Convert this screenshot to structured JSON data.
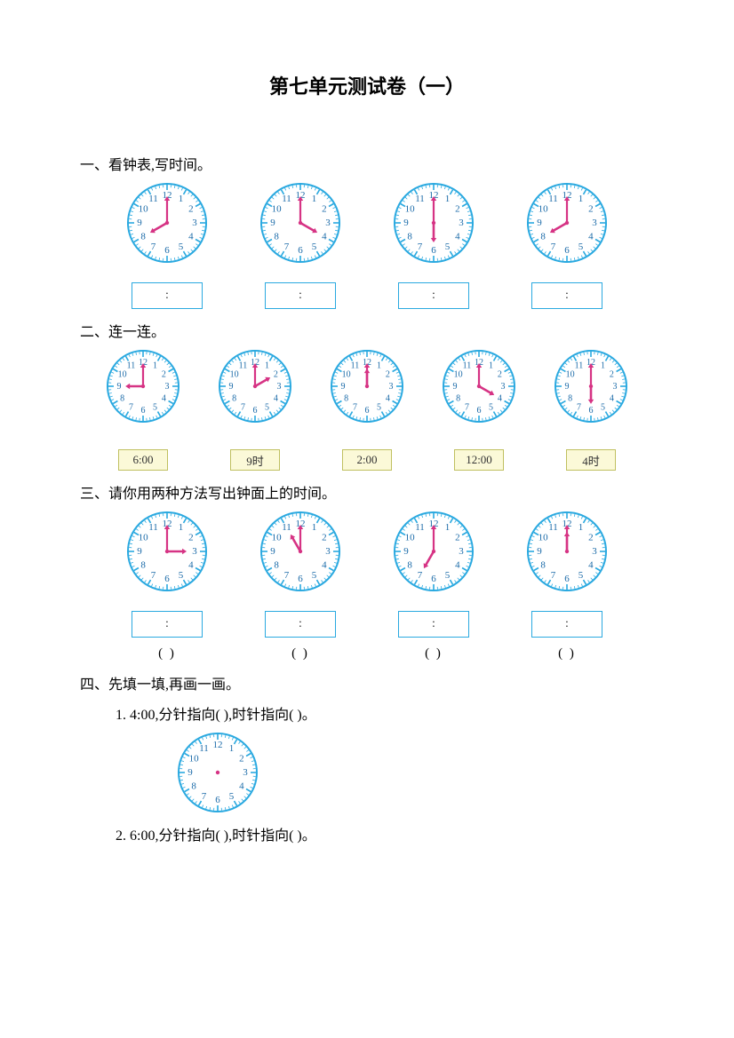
{
  "title": "第七单元测试卷（一）",
  "clock_style": {
    "bezel_color": "#2aa9e0",
    "tick_color": "#2aa9e0",
    "number_color": "#1a6aa8",
    "minute_hand_color": "#d63384",
    "hour_hand_color": "#d63384",
    "center_color": "#d63384",
    "answer_box_border": "#2aa9e0",
    "label_box_bg": "#fbf9d8",
    "label_box_border": "#c0c060"
  },
  "sections": {
    "q1": {
      "heading": "一、看钟表,写时间。",
      "clocks": [
        {
          "hour": 8,
          "minute": 0
        },
        {
          "hour": 4,
          "minute": 0
        },
        {
          "hour": 6,
          "minute": 0
        },
        {
          "hour": 8,
          "minute": 0
        }
      ],
      "answer_placeholder": ":"
    },
    "q2": {
      "heading": "二、连一连。",
      "clocks": [
        {
          "hour": 9,
          "minute": 0
        },
        {
          "hour": 2,
          "minute": 0
        },
        {
          "hour": 12,
          "minute": 0
        },
        {
          "hour": 4,
          "minute": 0
        },
        {
          "hour": 6,
          "minute": 0
        }
      ],
      "labels": [
        "6:00",
        "9时",
        "2:00",
        "12:00",
        "4时"
      ]
    },
    "q3": {
      "heading": "三、请你用两种方法写出钟面上的时间。",
      "clocks": [
        {
          "hour": 3,
          "minute": 0
        },
        {
          "hour": 11,
          "minute": 0
        },
        {
          "hour": 7,
          "minute": 0
        },
        {
          "hour": 12,
          "minute": 0
        }
      ],
      "answer_placeholder": ":",
      "paren": "(          )"
    },
    "q4": {
      "heading": "四、先填一填,再画一画。",
      "items": [
        {
          "text": "1. 4:00,分针指向(       ),时针指向(       )。",
          "clock": {
            "blank": true
          }
        },
        {
          "text": "2. 6:00,分针指向(       ),时针指向(       )。"
        }
      ]
    }
  }
}
